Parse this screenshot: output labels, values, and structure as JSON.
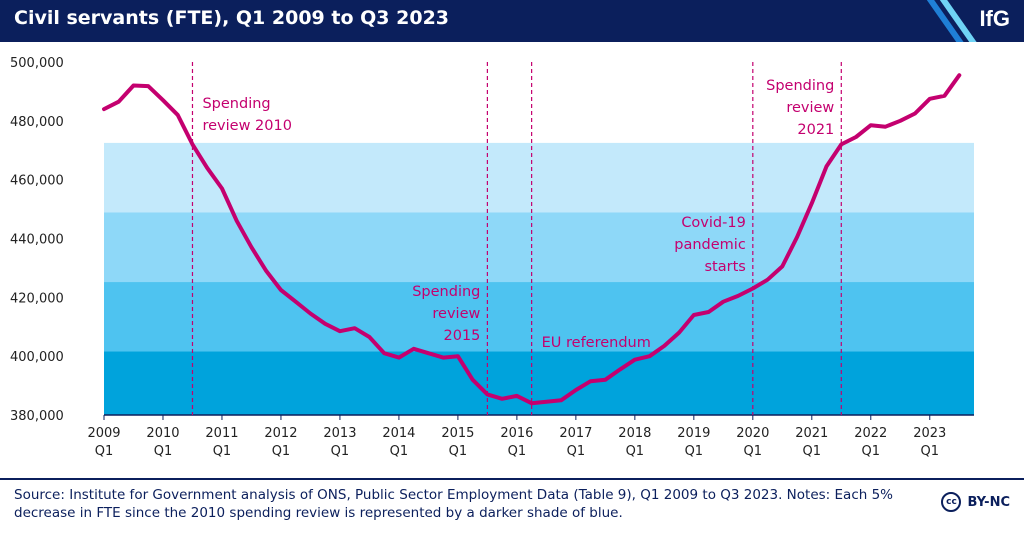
{
  "header": {
    "title": "Civil servants (FTE), Q1 2009 to Q3 2023",
    "logo_text": "IfG",
    "background_color": "#0b1f5c"
  },
  "footer": {
    "source_text": "Source: Institute for Government analysis of ONS, Public Sector Employment Data (Table 9), Q1 2009 to Q3 2023. Notes: Each 5% decrease in FTE since the 2010 spending review is represented by a darker shade of blue.",
    "license_icon": "cc",
    "license_text": "BY-NC"
  },
  "chart_data": {
    "type": "line",
    "title": "Civil servants (FTE), Q1 2009 to Q3 2023",
    "xlabel": "",
    "ylabel": "",
    "ylim": [
      380000,
      500000
    ],
    "yticks": [
      380000,
      400000,
      420000,
      440000,
      460000,
      480000,
      500000
    ],
    "ytick_labels": [
      "380,000",
      "400,000",
      "420,000",
      "440,000",
      "460,000",
      "480,000",
      "500,000"
    ],
    "xlim": [
      2009.0,
      2023.75
    ],
    "xticks": [
      {
        "year": "2009",
        "quarter": "Q1"
      },
      {
        "year": "2010",
        "quarter": "Q1"
      },
      {
        "year": "2011",
        "quarter": "Q1"
      },
      {
        "year": "2012",
        "quarter": "Q1"
      },
      {
        "year": "2013",
        "quarter": "Q1"
      },
      {
        "year": "2014",
        "quarter": "Q1"
      },
      {
        "year": "2015",
        "quarter": "Q1"
      },
      {
        "year": "2016",
        "quarter": "Q1"
      },
      {
        "year": "2017",
        "quarter": "Q1"
      },
      {
        "year": "2018",
        "quarter": "Q1"
      },
      {
        "year": "2019",
        "quarter": "Q1"
      },
      {
        "year": "2020",
        "quarter": "Q1"
      },
      {
        "year": "2021",
        "quarter": "Q1"
      },
      {
        "year": "2022",
        "quarter": "Q1"
      },
      {
        "year": "2023",
        "quarter": "Q1"
      }
    ],
    "grid": false,
    "line_color": "#c4006f",
    "series": [
      {
        "x": [
          "2009 Q1",
          "2009 Q2",
          "2009 Q3",
          "2009 Q4",
          "2010 Q1",
          "2010 Q2",
          "2010 Q3",
          "2010 Q4",
          "2011 Q1",
          "2011 Q2",
          "2011 Q3",
          "2011 Q4",
          "2012 Q1",
          "2012 Q2",
          "2012 Q3",
          "2012 Q4",
          "2013 Q1",
          "2013 Q2",
          "2013 Q3",
          "2013 Q4",
          "2014 Q1",
          "2014 Q2",
          "2014 Q3",
          "2014 Q4",
          "2015 Q1",
          "2015 Q2",
          "2015 Q3",
          "2015 Q4",
          "2016 Q1",
          "2016 Q2",
          "2016 Q3",
          "2016 Q4",
          "2017 Q1",
          "2017 Q2",
          "2017 Q3",
          "2017 Q4",
          "2018 Q1",
          "2018 Q2",
          "2018 Q3",
          "2018 Q4",
          "2019 Q1",
          "2019 Q2",
          "2019 Q3",
          "2019 Q4",
          "2020 Q1",
          "2020 Q2",
          "2020 Q3",
          "2020 Q4",
          "2021 Q1",
          "2021 Q2",
          "2021 Q3",
          "2021 Q4",
          "2022 Q1",
          "2022 Q2",
          "2022 Q3",
          "2022 Q4",
          "2023 Q1",
          "2023 Q2",
          "2023 Q3"
        ],
        "values": [
          484000,
          486500,
          492000,
          491800,
          487000,
          482000,
          472000,
          464000,
          457000,
          446000,
          437000,
          429000,
          422500,
          418500,
          414500,
          411000,
          408500,
          409500,
          406500,
          401000,
          399500,
          402500,
          401000,
          399500,
          400000,
          392000,
          387000,
          385500,
          386500,
          384000,
          384500,
          385000,
          388500,
          391500,
          392000,
          395500,
          398800,
          400000,
          403500,
          408000,
          414000,
          415000,
          418500,
          420500,
          423000,
          426000,
          430500,
          440500,
          452000,
          464500,
          472000,
          474500,
          478500,
          478000,
          480000,
          482500,
          487500,
          488500,
          495500
        ]
      }
    ],
    "shaded_bands": [
      {
        "y0": 448850,
        "y1": 472500,
        "color": "#c3e9fb"
      },
      {
        "y0": 425200,
        "y1": 448850,
        "color": "#8ed8f8"
      },
      {
        "y0": 401600,
        "y1": 425200,
        "color": "#4ec3f0"
      },
      {
        "y0": 380000,
        "y1": 401600,
        "color": "#00a3dc"
      }
    ],
    "annotations": [
      {
        "x": 2010.5,
        "label_lines": [
          "Spending",
          "review 2010"
        ],
        "align": "start"
      },
      {
        "x": 2015.5,
        "label_lines": [
          "Spending",
          "review",
          "2015"
        ],
        "align": "end"
      },
      {
        "x": 2016.25,
        "label_lines": [
          "EU referendum"
        ],
        "align": "start"
      },
      {
        "x": 2020.0,
        "label_lines": [
          "Covid-19",
          "pandemic",
          "starts"
        ],
        "align": "end"
      },
      {
        "x": 2021.5,
        "label_lines": [
          "Spending",
          "review",
          "2021"
        ],
        "align": "end"
      }
    ],
    "annotation_color": "#c4006f",
    "axis_color": "#0b1f5c"
  }
}
